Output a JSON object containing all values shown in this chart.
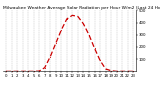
{
  "title": "Milwaukee Weather Average Solar Radiation per Hour W/m2 (Last 24 Hours)",
  "hours": [
    0,
    1,
    2,
    3,
    4,
    5,
    6,
    7,
    8,
    9,
    10,
    11,
    12,
    13,
    14,
    15,
    16,
    17,
    18,
    19,
    20,
    21,
    22,
    23
  ],
  "values": [
    0,
    0,
    0,
    0,
    0,
    0,
    2,
    30,
    120,
    230,
    340,
    430,
    460,
    450,
    390,
    300,
    190,
    90,
    20,
    5,
    0,
    0,
    0,
    0
  ],
  "line_color": "#cc0000",
  "grid_color": "#999999",
  "bg_color": "#ffffff",
  "ylim": [
    0,
    500
  ],
  "yticks": [
    100,
    200,
    300,
    400,
    500
  ],
  "xlim": [
    -0.5,
    23.5
  ],
  "title_fontsize": 3.2,
  "tick_fontsize": 2.8,
  "linewidth": 0.9,
  "markersize": 1.5
}
